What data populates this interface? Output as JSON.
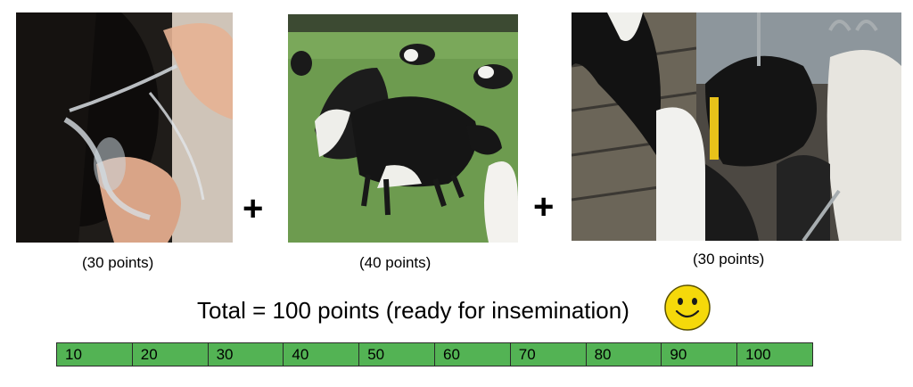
{
  "stages": [
    {
      "points_label": "(30 points)",
      "image": "cow-vulva-mucus-photo"
    },
    {
      "points_label": "(40 points)",
      "image": "cows-mounting-in-pasture-photo"
    },
    {
      "points_label": "(30 points)",
      "image": "cows-in-barn-photo"
    }
  ],
  "operator": "+",
  "total_text": "Total = 100 points (ready for insemination)",
  "smiley_icon": "smiley-face-icon",
  "scale": [
    "10",
    "20",
    "30",
    "40",
    "50",
    "60",
    "70",
    "80",
    "90",
    "100"
  ],
  "scale_fill": 1.0,
  "colors": {
    "scale_fill": "#53b354",
    "smiley": "#f5d90a"
  }
}
